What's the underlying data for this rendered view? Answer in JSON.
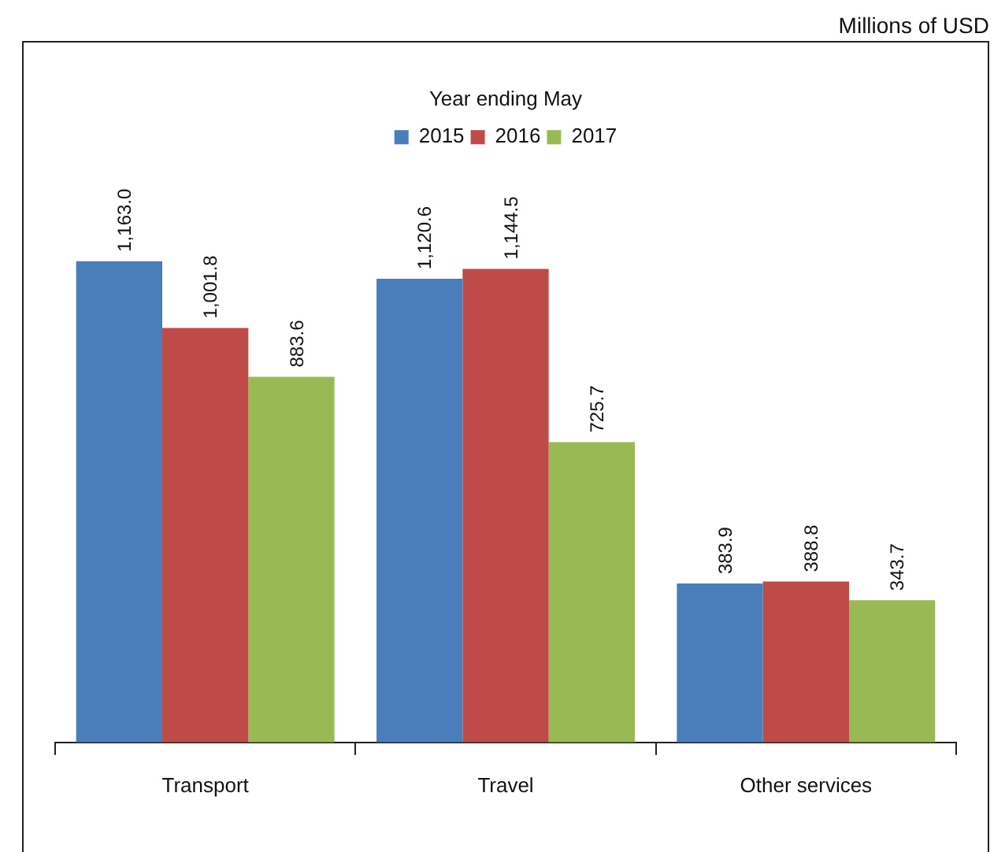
{
  "chart_data": {
    "type": "bar",
    "legend_title": "Year ending May",
    "annotations": [
      "Millions of USD"
    ],
    "categories": [
      "Transport",
      "Travel",
      "Other services"
    ],
    "series": [
      {
        "name": "2015",
        "color": "#4a7ebb",
        "values": [
          1163.0,
          1120.6,
          383.9
        ],
        "value_labels": [
          "1,163.0",
          "1,120.6",
          "383.9"
        ]
      },
      {
        "name": "2016",
        "color": "#be4b48",
        "values": [
          1001.8,
          1144.5,
          388.8
        ],
        "value_labels": [
          "1,001.8",
          "1,144.5",
          "388.8"
        ]
      },
      {
        "name": "2017",
        "color": "#98b954",
        "values": [
          883.6,
          725.7,
          343.7
        ],
        "value_labels": [
          "883.6",
          "725.7",
          "343.7"
        ]
      }
    ],
    "legend": "top",
    "grid": false
  }
}
